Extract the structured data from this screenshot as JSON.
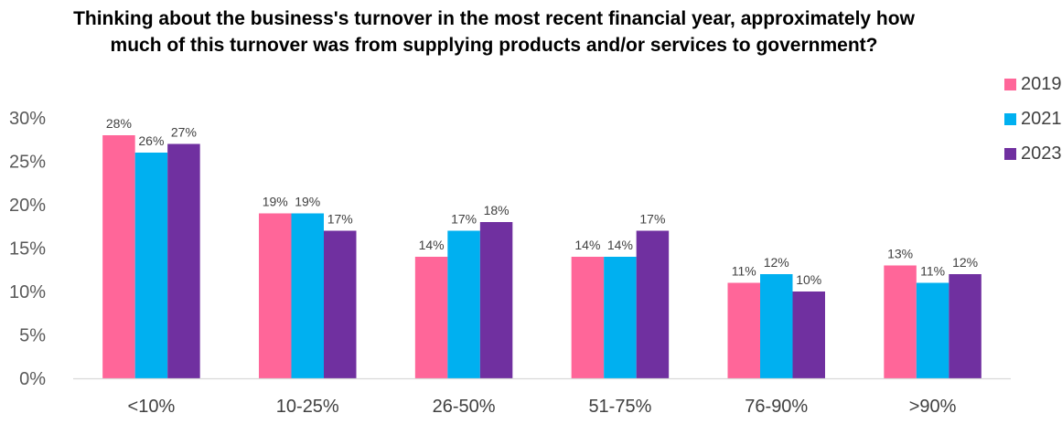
{
  "chart_data": {
    "type": "bar",
    "title": "Thinking about the business's turnover in the most recent financial year, approximately how much of this turnover was from supplying products and/or services to government?",
    "categories": [
      "<10%",
      "10-25%",
      "26-50%",
      "51-75%",
      "76-90%",
      ">90%"
    ],
    "series": [
      {
        "name": "2019",
        "color": "#FF6699",
        "values": [
          28,
          19,
          14,
          14,
          11,
          13
        ]
      },
      {
        "name": "2021",
        "color": "#00B0F0",
        "values": [
          26,
          19,
          17,
          14,
          12,
          11
        ]
      },
      {
        "name": "2023",
        "color": "#7030A0",
        "values": [
          27,
          17,
          18,
          17,
          10,
          12
        ]
      }
    ],
    "ylim": [
      0,
      30
    ],
    "yticks": [
      "0%",
      "5%",
      "10%",
      "15%",
      "20%",
      "25%",
      "30%"
    ],
    "value_suffix": "%",
    "legend_position": "right",
    "grid": false
  }
}
